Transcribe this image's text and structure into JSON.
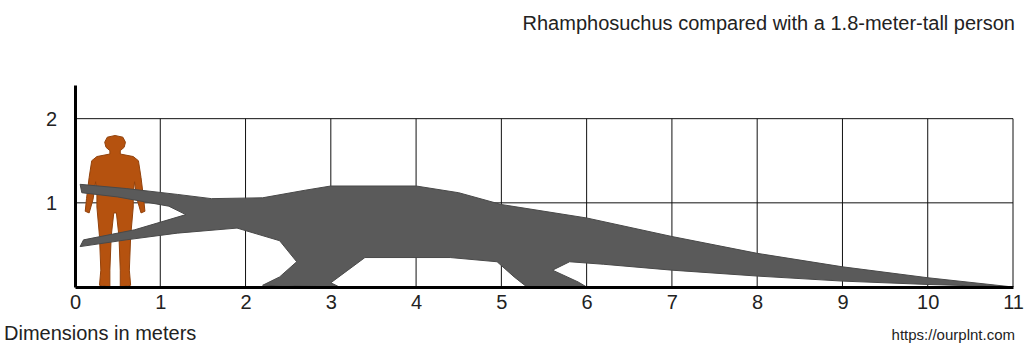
{
  "chart_data": {
    "type": "size_comparison",
    "title": "Rhamphosuchus compared with a 1.8-meter-tall person",
    "x_label": "Dimensions in meters",
    "source": "https://ourplnt.com",
    "xlim": [
      0,
      11
    ],
    "xticks": [
      0,
      1,
      2,
      3,
      4,
      5,
      6,
      7,
      8,
      9,
      10,
      11
    ],
    "ylim": [
      0,
      2.4
    ],
    "yticks": [
      1,
      2
    ],
    "grid": true,
    "figures": [
      {
        "marker": "person",
        "color": "#b5520f",
        "x": [
          0.12,
          0.82
        ],
        "height": 1.8
      },
      {
        "marker": "crocodile",
        "color": "#5a5a5a",
        "x": [
          0.06,
          11
        ],
        "height": 1.22
      }
    ]
  }
}
